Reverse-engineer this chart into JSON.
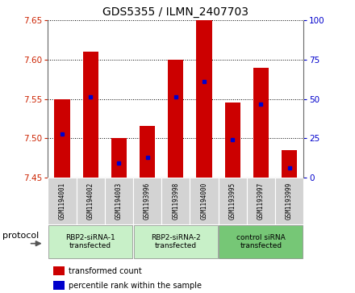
{
  "title": "GDS5355 / ILMN_2407703",
  "samples": [
    "GSM1194001",
    "GSM1194002",
    "GSM1194003",
    "GSM1193996",
    "GSM1193998",
    "GSM1194000",
    "GSM1193995",
    "GSM1193997",
    "GSM1193999"
  ],
  "bar_tops": [
    7.55,
    7.61,
    7.5,
    7.515,
    7.6,
    7.65,
    7.545,
    7.59,
    7.485
  ],
  "bar_base": 7.45,
  "percentile_values": [
    7.505,
    7.553,
    7.468,
    7.475,
    7.553,
    7.572,
    7.498,
    7.543,
    7.462
  ],
  "ylim_left": [
    7.45,
    7.65
  ],
  "ylim_right": [
    0,
    100
  ],
  "yticks_left": [
    7.45,
    7.5,
    7.55,
    7.6,
    7.65
  ],
  "yticks_right": [
    0,
    25,
    50,
    75,
    100
  ],
  "bar_color": "#CC0000",
  "percentile_color": "#0000CC",
  "left_tick_color": "#CC2200",
  "right_tick_color": "#0000CC",
  "legend_red_label": "transformed count",
  "legend_blue_label": "percentile rank within the sample",
  "protocol_label": "protocol",
  "sample_bg_color": "#d3d3d3",
  "group1_color": "#c8f0c8",
  "group2_color": "#76c776",
  "group_configs": [
    {
      "start": 0,
      "end": 2,
      "color": "#c8f0c8",
      "label": "RBP2-siRNA-1\ntransfected"
    },
    {
      "start": 3,
      "end": 5,
      "color": "#c8f0c8",
      "label": "RBP2-siRNA-2\ntransfected"
    },
    {
      "start": 6,
      "end": 8,
      "color": "#76c776",
      "label": "control siRNA\ntransfected"
    }
  ]
}
